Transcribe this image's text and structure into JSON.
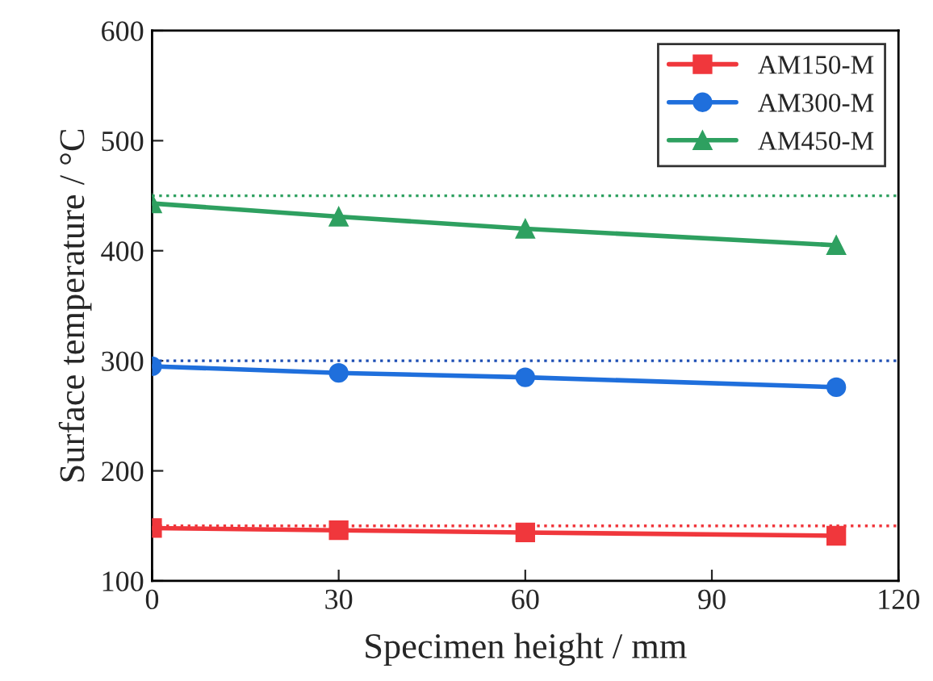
{
  "chart_data": {
    "type": "line",
    "xlabel": "Specimen height / mm",
    "ylabel": "Surface temperature / °C",
    "x": [
      0,
      30,
      60,
      110
    ],
    "series": [
      {
        "name": "AM150-M",
        "color": "#f0373c",
        "values": [
          148,
          146,
          144,
          141
        ],
        "marker": "square"
      },
      {
        "name": "AM300-M",
        "color": "#1f6fdc",
        "values": [
          295,
          289,
          285,
          276
        ],
        "marker": "circle"
      },
      {
        "name": "AM450-M",
        "color": "#2ea060",
        "values": [
          443,
          431,
          420,
          405
        ],
        "marker": "triangle"
      }
    ],
    "ref_lines": [
      {
        "axis": "y",
        "value": 150,
        "color": "#f0373c",
        "line_style": "dotted"
      },
      {
        "axis": "y",
        "value": 300,
        "color": "#1f4fb4",
        "line_style": "dotted"
      },
      {
        "axis": "y",
        "value": 450,
        "color": "#2ea060",
        "line_style": "dotted"
      }
    ],
    "xlim": [
      0,
      120
    ],
    "xticks": [
      0,
      30,
      60,
      90,
      120
    ],
    "ylim": [
      100,
      600
    ],
    "yticks": [
      100,
      200,
      300,
      400,
      500,
      600
    ],
    "line_style": "solid",
    "grid": false,
    "legend": "top right"
  }
}
